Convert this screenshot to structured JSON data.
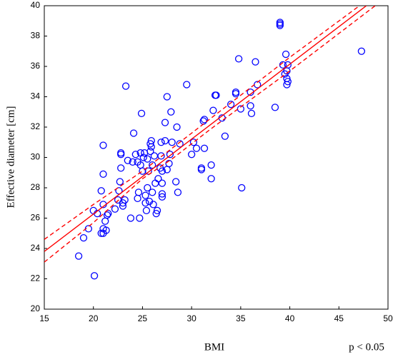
{
  "chart_data": {
    "type": "scatter",
    "x_label": "BMI",
    "y_label": "Effective diameter [cm]",
    "annotation": "p < 0.05",
    "xlim": [
      15,
      50
    ],
    "ylim": [
      20,
      40
    ],
    "xticks": [
      15,
      20,
      25,
      30,
      35,
      40,
      45,
      50
    ],
    "yticks": [
      20,
      22,
      24,
      26,
      28,
      30,
      32,
      34,
      36,
      38,
      40
    ],
    "grid": false,
    "series": [
      {
        "style": "markers",
        "color": "#0000ff",
        "x": [
          18.5,
          19,
          19.5,
          20,
          20.1,
          20.4,
          20.8,
          20.8,
          21,
          21,
          21,
          21,
          21,
          21.2,
          21.3,
          21.4,
          21.5,
          22.2,
          22.5,
          22.6,
          22.7,
          22.8,
          22.8,
          22.8,
          23,
          23,
          23.2,
          23.3,
          23.5,
          23.8,
          24,
          24.1,
          24.3,
          24.5,
          24.5,
          24.6,
          24.7,
          24.8,
          24.8,
          24.9,
          25,
          25.1,
          25.2,
          25.3,
          25.3,
          25.4,
          25.5,
          25.5,
          25.6,
          25.7,
          25.8,
          25.8,
          25.9,
          25.9,
          26,
          26,
          26.1,
          26.2,
          26.3,
          26.4,
          26.5,
          26.6,
          26.8,
          26.9,
          26.9,
          27,
          27,
          27,
          27,
          27.3,
          27.3,
          27.5,
          27.5,
          27.7,
          27.8,
          27.9,
          28,
          28.4,
          28.5,
          28.6,
          28.8,
          29.5,
          30,
          30.2,
          30.5,
          31,
          31,
          31.2,
          31.3,
          31.3,
          32,
          32,
          32.2,
          32.4,
          32.5,
          33.1,
          33.4,
          34,
          34.5,
          34.5,
          34.8,
          35,
          35.1,
          36,
          36,
          36.1,
          36.5,
          36.7,
          38.5,
          39,
          39,
          39,
          39.3,
          39.5,
          39.6,
          39.7,
          39.7,
          39.7,
          39.8,
          39.8,
          47.3
        ],
        "values": [
          23.5,
          24.7,
          25.3,
          26.5,
          22.2,
          26.3,
          27.8,
          25,
          25,
          25.3,
          26.9,
          28.9,
          30.8,
          25.8,
          25.2,
          26.2,
          26.3,
          26.6,
          27.2,
          27.8,
          28.4,
          29.3,
          30.2,
          30.3,
          26.8,
          27,
          27.2,
          34.7,
          29.8,
          26,
          29.7,
          31.6,
          30.2,
          29.7,
          27.3,
          27.7,
          26,
          29.5,
          30.3,
          32.9,
          29.1,
          30,
          30.3,
          27.5,
          27,
          26.5,
          28,
          29.9,
          29.1,
          27.1,
          30.4,
          30.9,
          31.1,
          30.7,
          27.7,
          29.5,
          26.9,
          30.1,
          28.3,
          26.3,
          26.5,
          28.6,
          29.3,
          31,
          30.1,
          27.6,
          27.4,
          28.3,
          29.1,
          31.1,
          32.3,
          29.2,
          34,
          29.6,
          30.2,
          33,
          31,
          28.4,
          32,
          27.7,
          30.9,
          34.8,
          30.2,
          31,
          30.6,
          29.3,
          29.2,
          32.4,
          32.5,
          30.6,
          29.5,
          28.6,
          33.1,
          34.1,
          34.1,
          32.6,
          31.4,
          33.5,
          34.2,
          34.3,
          36.5,
          33.2,
          28,
          34.3,
          33.4,
          32.9,
          36.3,
          34.8,
          33.3,
          38.9,
          38.8,
          38.7,
          36.1,
          35.5,
          36.8,
          35.7,
          35.2,
          34.8,
          36.1,
          35,
          37
        ]
      },
      {
        "style": "solid",
        "color": "#ff0000",
        "x": [
          15,
          47.8
        ],
        "values": [
          23.8,
          40
        ]
      },
      {
        "style": "dashed",
        "color": "#ff0000",
        "x": [
          15,
          20,
          25,
          28,
          32,
          40,
          47.1
        ],
        "values": [
          24.6,
          26.9,
          29.1,
          30.6,
          32.6,
          36.6,
          40
        ]
      },
      {
        "style": "dashed",
        "color": "#ff0000",
        "x": [
          15,
          20,
          25,
          28,
          32,
          40,
          48.7
        ],
        "values": [
          23.1,
          25.7,
          28.6,
          29.9,
          31.9,
          35.7,
          40
        ]
      }
    ]
  }
}
